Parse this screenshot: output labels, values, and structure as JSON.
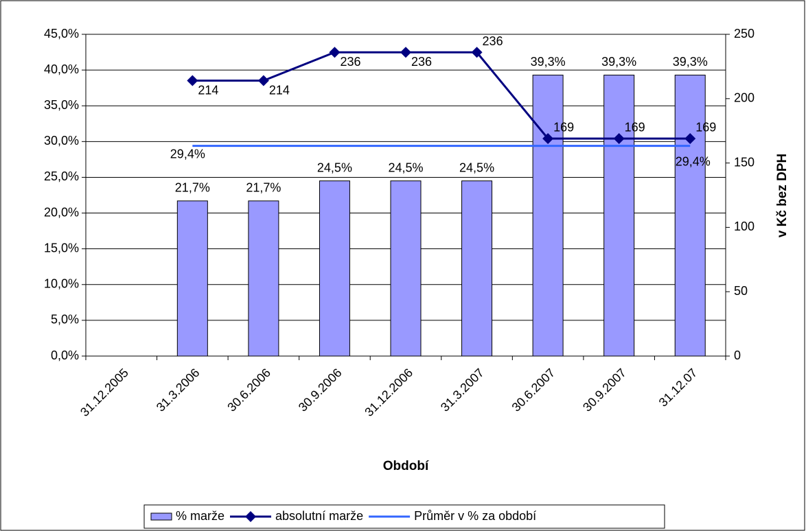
{
  "chart_data": {
    "type": "bar",
    "categories": [
      "31.12.2005",
      "31.3.2006",
      "30.6.2006",
      "30.9.2006",
      "31.12.2006",
      "31.3.2007",
      "30.6.2007",
      "30.9.2007",
      "31.12.07"
    ],
    "series": [
      {
        "name": "% marže",
        "type": "bar",
        "color": "#9999ff",
        "values": [
          null,
          21.7,
          21.7,
          24.5,
          24.5,
          24.5,
          39.3,
          39.3,
          39.3
        ],
        "value_labels": [
          null,
          "21,7%",
          "21,7%",
          "24,5%",
          "24,5%",
          "24,5%",
          "39,3%",
          "39,3%",
          "39,3%"
        ]
      },
      {
        "name": "absolutní marže",
        "type": "line",
        "axis": "y2",
        "color": "#000080",
        "values": [
          null,
          214,
          214,
          236,
          236,
          236,
          169,
          169,
          169
        ]
      },
      {
        "name": "Průměr v % za období",
        "type": "line",
        "color": "#3366ff",
        "values": [
          null,
          29.4,
          29.4,
          29.4,
          29.4,
          29.4,
          29.4,
          29.4,
          29.4
        ],
        "value_labels": [
          null,
          "29,4%",
          null,
          null,
          null,
          null,
          null,
          null,
          "29,4%"
        ]
      }
    ],
    "xlabel": "Období",
    "y2label": "v Kč bez DPH",
    "ylim": [
      0,
      45
    ],
    "yticks": [
      {
        "value": 0,
        "label": "0,0%"
      },
      {
        "value": 5,
        "label": "5,0%"
      },
      {
        "value": 10,
        "label": "10,0%"
      },
      {
        "value": 15,
        "label": "15,0%"
      },
      {
        "value": 20,
        "label": "20,0%"
      },
      {
        "value": 25,
        "label": "25,0%"
      },
      {
        "value": 30,
        "label": "30,0%"
      },
      {
        "value": 35,
        "label": "35,0%"
      },
      {
        "value": 40,
        "label": "40,0%"
      },
      {
        "value": 45,
        "label": "45,0%"
      }
    ],
    "y2lim": [
      0,
      250
    ],
    "y2ticks": [
      0,
      50,
      100,
      150,
      200,
      250
    ],
    "grid": true,
    "legend": "bottom"
  }
}
